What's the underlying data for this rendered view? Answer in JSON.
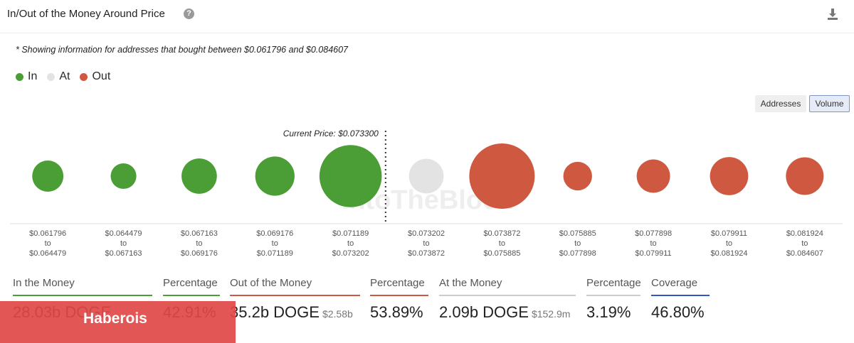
{
  "header": {
    "title": "In/Out of the Money Around Price",
    "help_icon": "?",
    "download_icon": "download-icon"
  },
  "note": "* Showing information for addresses that bought between $0.061796 and $0.084607",
  "legend": [
    {
      "label": "In",
      "color": "#4a9e35"
    },
    {
      "label": "At",
      "color": "#e3e3e3"
    },
    {
      "label": "Out",
      "color": "#cf5840"
    }
  ],
  "toggles": {
    "addresses": "Addresses",
    "volume": "Volume",
    "active": "Volume"
  },
  "chart_data": {
    "type": "scatter",
    "annotation": "Current Price: $0.073300",
    "current_price_index": 5,
    "categories": [
      {
        "from": "$0.061796",
        "to": "$0.064479",
        "status": "In",
        "relative_volume": 0.11
      },
      {
        "from": "$0.064479",
        "to": "$0.067163",
        "status": "In",
        "relative_volume": 0.05
      },
      {
        "from": "$0.067163",
        "to": "$0.069176",
        "status": "In",
        "relative_volume": 0.17
      },
      {
        "from": "$0.069176",
        "to": "$0.071189",
        "status": "In",
        "relative_volume": 0.24
      },
      {
        "from": "$0.071189",
        "to": "$0.073202",
        "status": "In",
        "relative_volume": 0.88
      },
      {
        "from": "$0.073202",
        "to": "$0.073872",
        "status": "At",
        "relative_volume": 0.16
      },
      {
        "from": "$0.073872",
        "to": "$0.075885",
        "status": "Out",
        "relative_volume": 1.0
      },
      {
        "from": "$0.075885",
        "to": "$0.077898",
        "status": "Out",
        "relative_volume": 0.08
      },
      {
        "from": "$0.077898",
        "to": "$0.079911",
        "status": "Out",
        "relative_volume": 0.14
      },
      {
        "from": "$0.079911",
        "to": "$0.081924",
        "status": "Out",
        "relative_volume": 0.22
      },
      {
        "from": "$0.081924",
        "to": "$0.084607",
        "status": "Out",
        "relative_volume": 0.21
      }
    ],
    "to_word": "to",
    "watermark": "IntoTheBlock"
  },
  "stats": [
    {
      "label": "In the Money",
      "value": "28.03b DOGE",
      "sub": "",
      "color": "#4a9e35"
    },
    {
      "label": "Percentage",
      "value": "42.91%",
      "sub": "",
      "color": "#4a9e35"
    },
    {
      "label": "Out of the Money",
      "value": "35.2b DOGE",
      "sub": "$2.58b",
      "color": "#cf5840"
    },
    {
      "label": "Percentage",
      "value": "53.89%",
      "sub": "",
      "color": "#cf5840"
    },
    {
      "label": "At the Money",
      "value": "2.09b DOGE",
      "sub": "$152.9m",
      "color": "#cccccc"
    },
    {
      "label": "Percentage",
      "value": "3.19%",
      "sub": "",
      "color": "#cccccc"
    },
    {
      "label": "Coverage",
      "value": "46.80%",
      "sub": "",
      "color": "#2d55c8"
    }
  ],
  "watermark_banner": "Haberois"
}
